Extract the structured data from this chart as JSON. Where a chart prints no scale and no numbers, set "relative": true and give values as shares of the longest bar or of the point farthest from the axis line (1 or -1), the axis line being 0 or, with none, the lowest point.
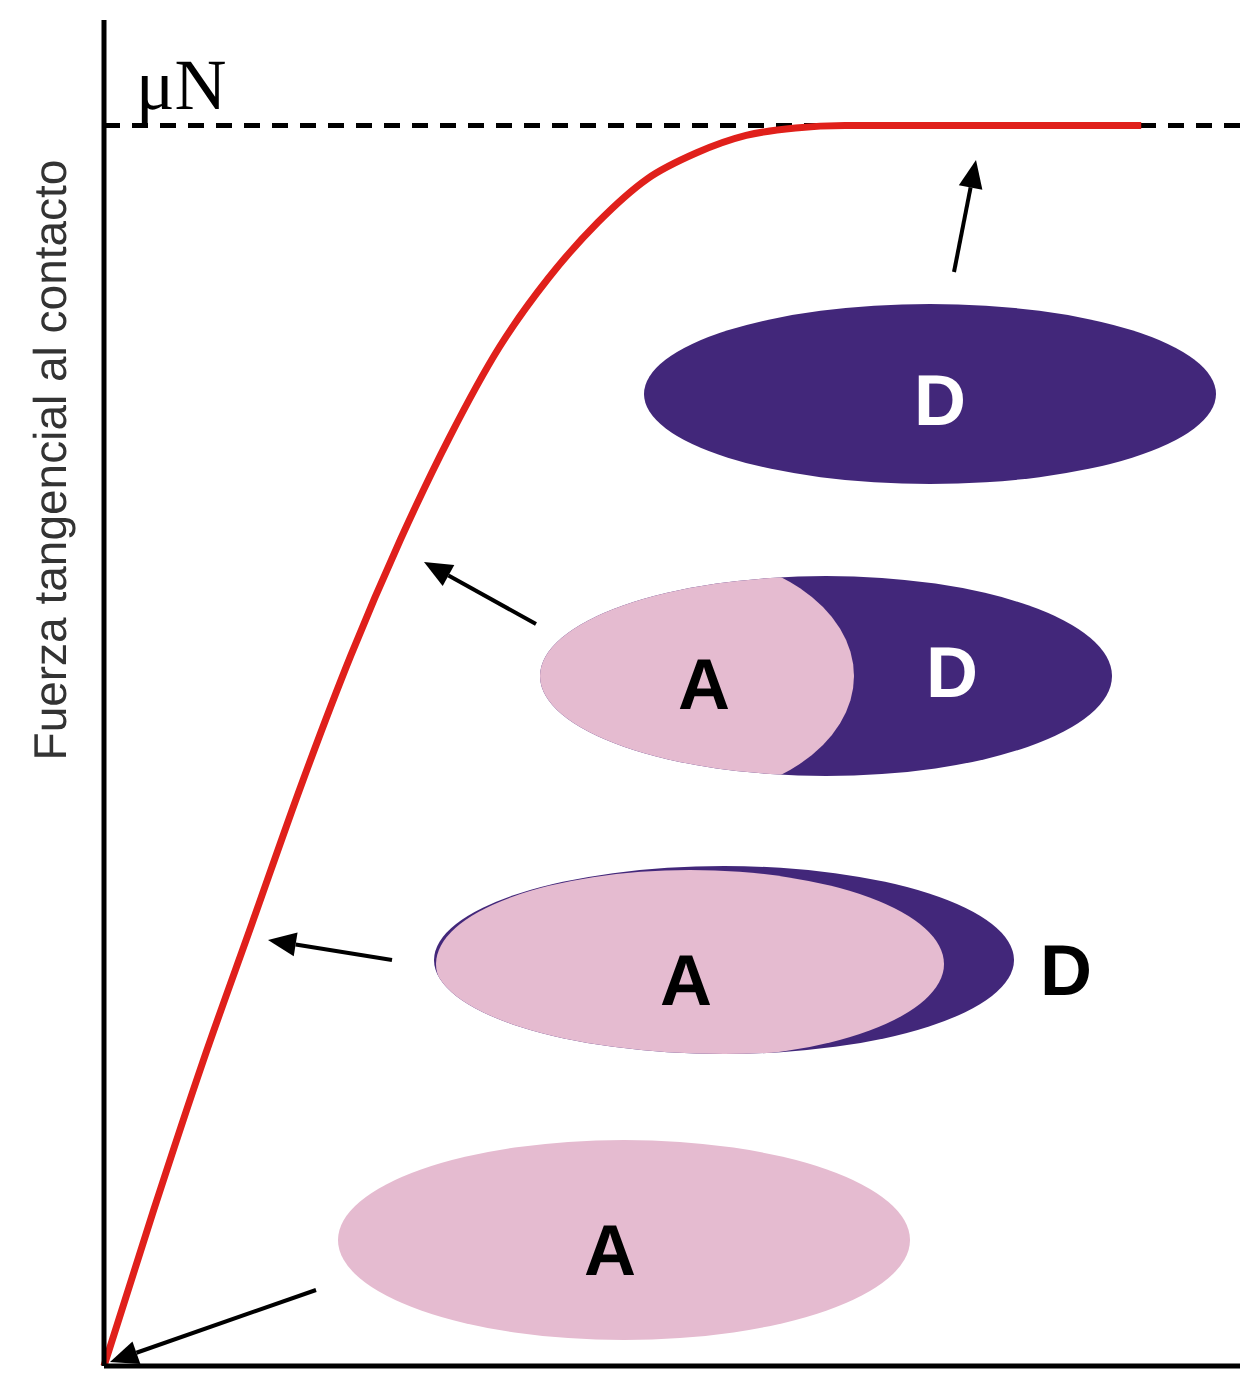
{
  "chart_data": {
    "type": "line",
    "ylabel": "Fuerza tangencial al contacto",
    "relative": true,
    "categories": [
      null,
      null,
      null,
      null,
      null,
      null,
      null,
      null,
      null,
      null,
      null,
      null,
      null,
      null,
      null,
      null,
      null,
      null,
      null,
      null,
      null,
      null,
      null,
      null
    ],
    "series": [
      {
        "color": "#e0201b",
        "values": [
          0,
          0.125,
          0.245,
          0.357,
          0.469,
          0.573,
          0.666,
          0.749,
          0.821,
          0.877,
          0.922,
          0.957,
          0.978,
          0.992,
          0.998,
          1,
          1,
          1,
          1,
          1,
          1,
          1,
          null,
          null
        ]
      }
    ],
    "ref_lines": [
      {
        "axis": "y",
        "value": 1,
        "label": "μN",
        "line_style": "dashed",
        "color": "#000000"
      }
    ],
    "annotations": [
      "D",
      "A",
      "D",
      "A",
      "D",
      "A"
    ]
  }
}
